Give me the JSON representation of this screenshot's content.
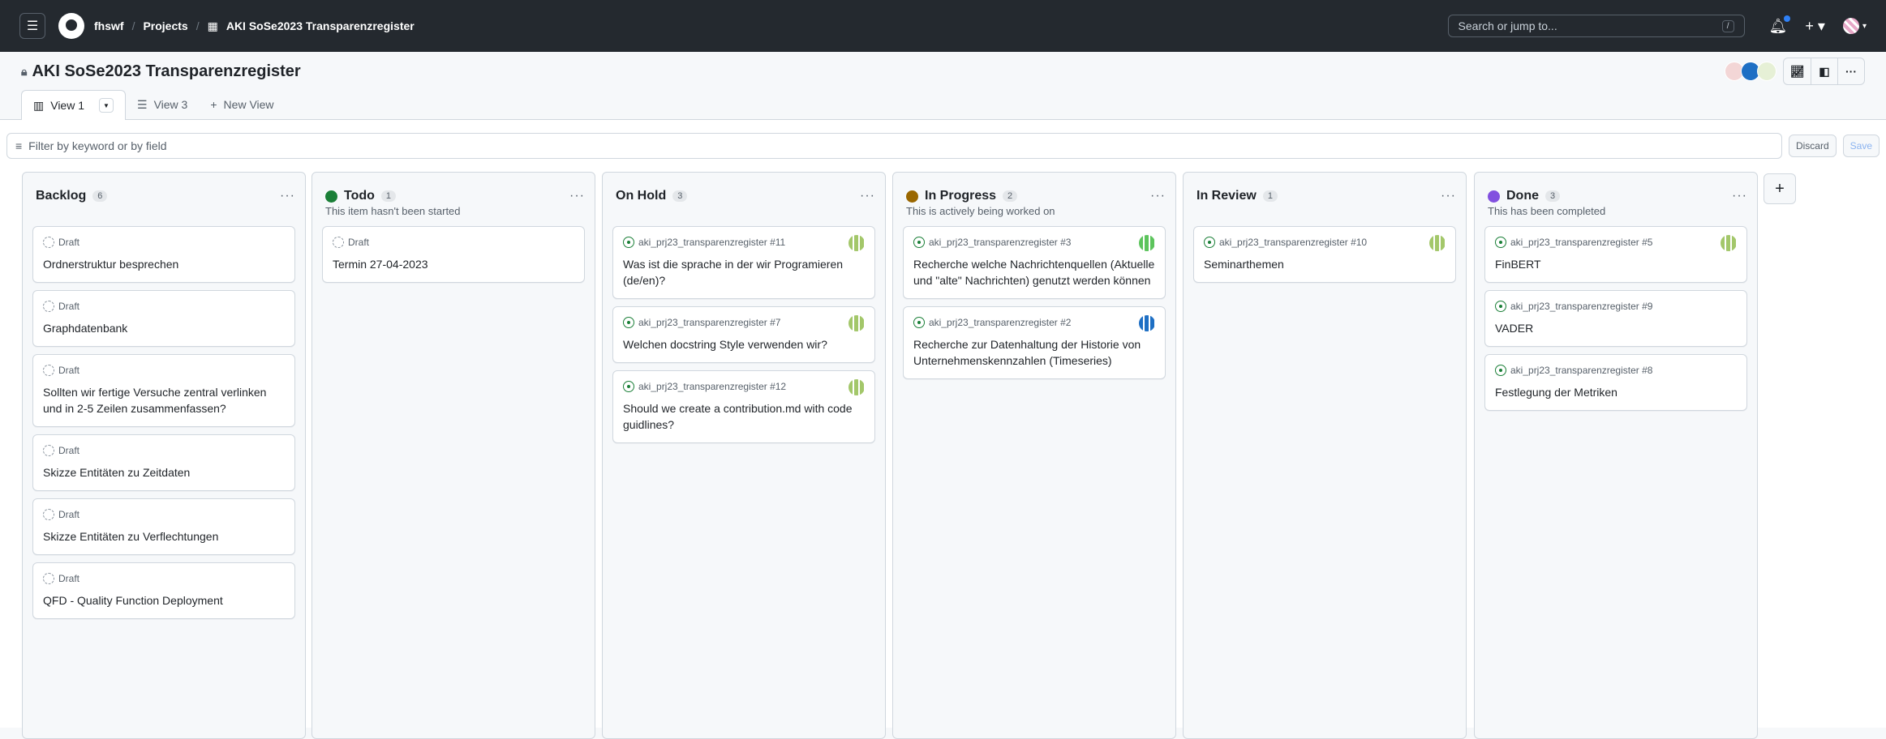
{
  "header": {
    "org": "fhswf",
    "projects": "Projects",
    "project": "AKI SoSe2023 Transparenzregister",
    "search_placeholder": "Search or jump to...",
    "search_key": "/"
  },
  "page": {
    "title": "AKI SoSe2023 Transparenzregister"
  },
  "tabs": [
    {
      "label": "View 1"
    },
    {
      "label": "View 3"
    },
    {
      "label": "New View"
    }
  ],
  "filter": {
    "placeholder": "Filter by keyword or by field",
    "discard": "Discard",
    "save": "Save"
  },
  "colors": {
    "todo": "#1a7f37",
    "in_progress": "#9a6700",
    "done": "#8250df",
    "issue_open": "#1a7f37"
  },
  "columns": [
    {
      "title": "Backlog",
      "count": "6",
      "color": "",
      "desc": "",
      "cards": [
        {
          "type": "draft",
          "meta": "Draft",
          "title": "Ordnerstruktur besprechen"
        },
        {
          "type": "draft",
          "meta": "Draft",
          "title": "Graphdatenbank"
        },
        {
          "type": "draft",
          "meta": "Draft",
          "title": "Sollten wir fertige Versuche zentral verlinken und in 2-5 Zeilen zusammenfassen?"
        },
        {
          "type": "draft",
          "meta": "Draft",
          "title": "Skizze Entitäten zu Zeitdaten"
        },
        {
          "type": "draft",
          "meta": "Draft",
          "title": "Skizze Entitäten zu Verflechtungen"
        },
        {
          "type": "draft",
          "meta": "Draft",
          "title": "QFD - Quality Function Deployment"
        }
      ]
    },
    {
      "title": "Todo",
      "count": "1",
      "color": "#1a7f37",
      "desc": "This item hasn't been started",
      "cards": [
        {
          "type": "draft",
          "meta": "Draft",
          "title": "Termin 27-04-2023"
        }
      ]
    },
    {
      "title": "On Hold",
      "count": "3",
      "color": "",
      "desc": "",
      "cards": [
        {
          "type": "issue",
          "meta": "aki_prj23_transparenzregister #11",
          "title": "Was ist die sprache in der wir Programieren (de/en)?",
          "avatar": "#a3c76a"
        },
        {
          "type": "issue",
          "meta": "aki_prj23_transparenzregister #7",
          "title": "Welchen docstring Style verwenden wir?",
          "avatar": "#a3c76a"
        },
        {
          "type": "issue",
          "meta": "aki_prj23_transparenzregister #12",
          "title": "Should we create a contribution.md with code guidlines?",
          "avatar": "#a3c76a"
        }
      ]
    },
    {
      "title": "In Progress",
      "count": "2",
      "color": "#9a6700",
      "desc": "This is actively being worked on",
      "cards": [
        {
          "type": "issue",
          "meta": "aki_prj23_transparenzregister #3",
          "title": "Recherche welche Nachrichtenquellen (Aktuelle und \"alte\" Nachrichten) genutzt werden können",
          "avatar": "#5cc45c"
        },
        {
          "type": "issue",
          "meta": "aki_prj23_transparenzregister #2",
          "title": "Recherche zur Datenhaltung der Historie von Unternehmenskennzahlen (Timeseries)",
          "avatar": "#1e6fc4"
        }
      ]
    },
    {
      "title": "In Review",
      "count": "1",
      "color": "",
      "desc": "",
      "cards": [
        {
          "type": "issue",
          "meta": "aki_prj23_transparenzregister #10",
          "title": "Seminarthemen",
          "avatar": "#a3c76a"
        }
      ]
    },
    {
      "title": "Done",
      "count": "3",
      "color": "#8250df",
      "desc": "This has been completed",
      "cards": [
        {
          "type": "issue",
          "meta": "aki_prj23_transparenzregister #5",
          "title": "FinBERT",
          "avatar": "#a3c76a"
        },
        {
          "type": "issue",
          "meta": "aki_prj23_transparenzregister #9",
          "title": "VADER",
          "avatar": ""
        },
        {
          "type": "issue",
          "meta": "aki_prj23_transparenzregister #8",
          "title": "Festlegung der Metriken",
          "avatar": ""
        }
      ]
    }
  ]
}
